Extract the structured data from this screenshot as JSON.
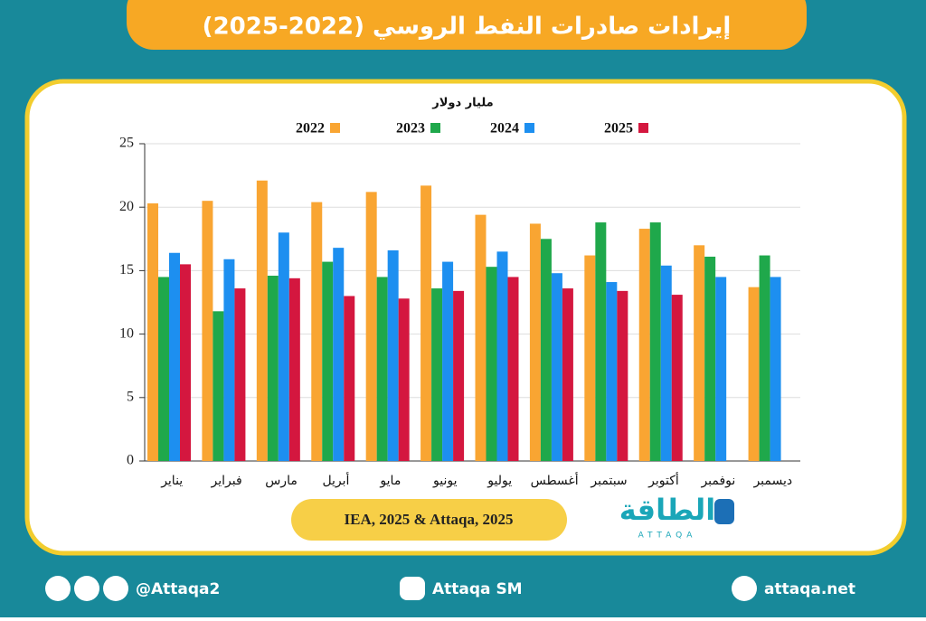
{
  "chart_data": {
    "type": "bar",
    "title": "إيرادات صادرات النفط الروسي (2022-2025)",
    "y_label": "مليار دولار",
    "categories": [
      "يناير",
      "فبراير",
      "مارس",
      "أبريل",
      "مايو",
      "يونيو",
      "يوليو",
      "أغسطس",
      "سبتمبر",
      "أكتوبر",
      "نوفمبر",
      "ديسمبر"
    ],
    "series": [
      {
        "name": "2022",
        "color": "#f9a532",
        "values": [
          20.3,
          20.5,
          22.1,
          20.4,
          21.2,
          21.7,
          19.4,
          18.7,
          16.2,
          18.3,
          17.0,
          13.7
        ]
      },
      {
        "name": "2023",
        "color": "#1fa84b",
        "values": [
          14.5,
          11.8,
          14.6,
          15.7,
          14.5,
          13.6,
          15.3,
          17.5,
          18.8,
          18.8,
          16.1,
          16.2
        ]
      },
      {
        "name": "2024",
        "color": "#1d8ff0",
        "values": [
          16.4,
          15.9,
          18.0,
          16.8,
          16.6,
          15.7,
          16.5,
          14.8,
          14.1,
          15.4,
          14.5,
          14.5
        ]
      },
      {
        "name": "2025",
        "color": "#d4173f",
        "values": [
          15.5,
          13.6,
          14.4,
          13.0,
          12.8,
          13.4,
          14.5,
          13.6,
          13.4,
          13.1,
          null,
          null
        ]
      }
    ],
    "ylim": [
      0,
      25
    ],
    "yticks": [
      0,
      5,
      10,
      15,
      20,
      25
    ],
    "grid": true,
    "source": "IEA, 2025 & Attaqa, 2025"
  },
  "footer": {
    "logo": "الطاقة",
    "logo_latin": "ATTAQA",
    "social": "@Attaqa2",
    "youtube": "Attaqa SM",
    "website": "attaqa.net"
  }
}
